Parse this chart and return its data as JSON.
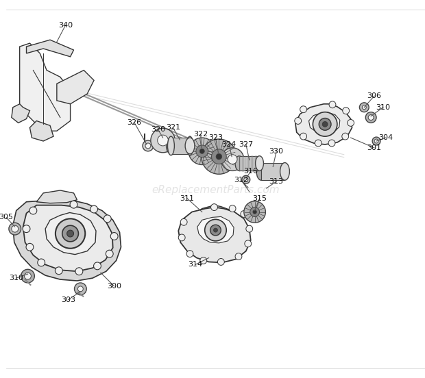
{
  "bg_color": "#ffffff",
  "watermark": "eReplacementParts.com",
  "watermark_color": "#cccccc",
  "line_color": "#333333",
  "label_fontsize": 8.0,
  "part_number_color": "#111111"
}
